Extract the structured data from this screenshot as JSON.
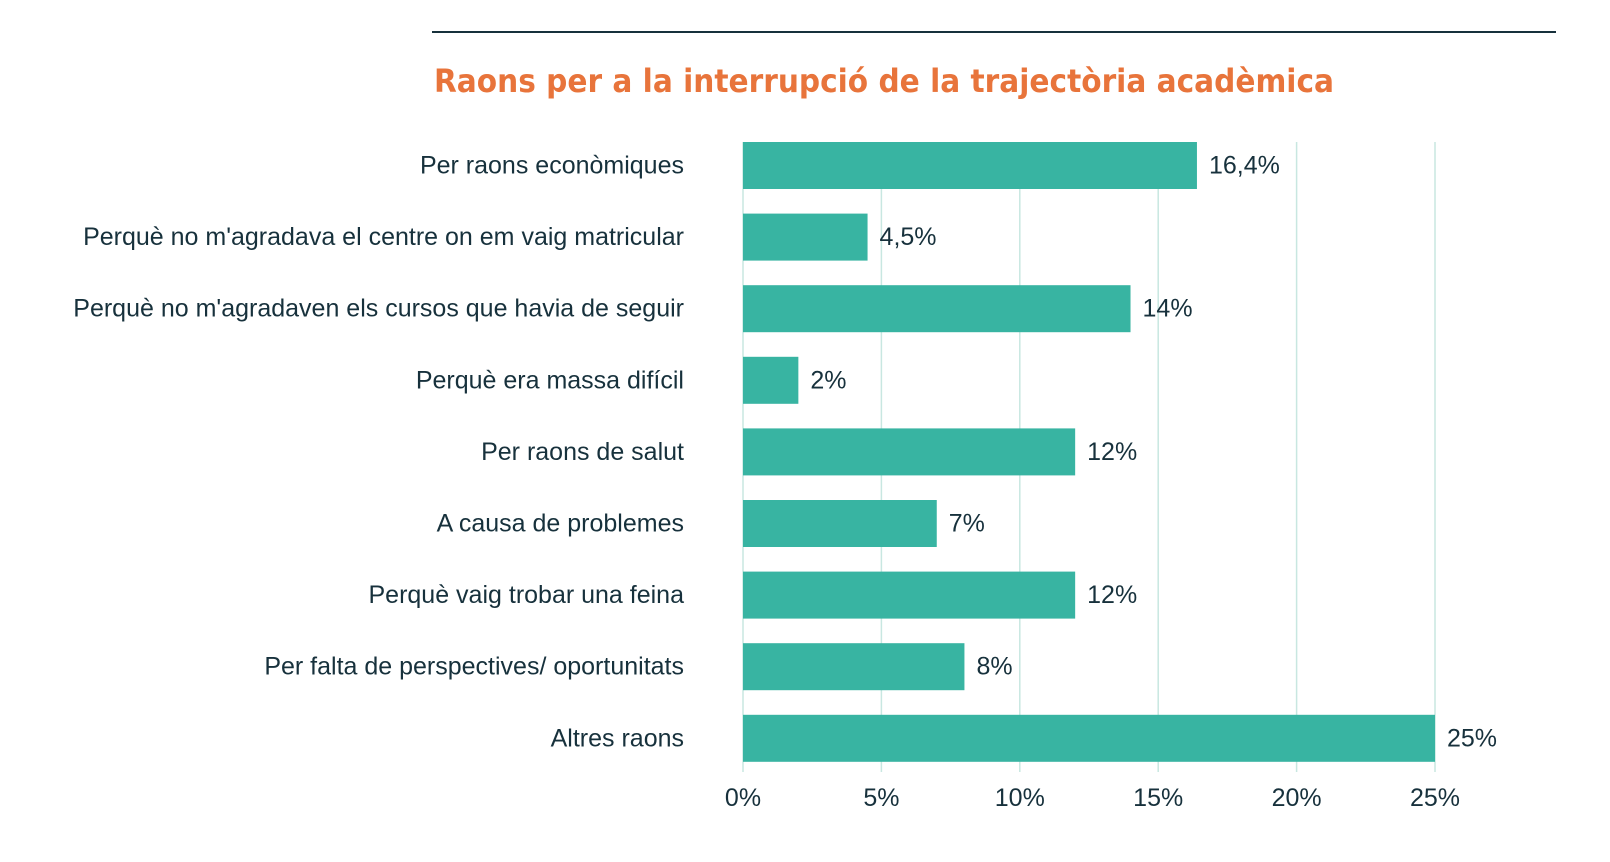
{
  "chart_data": {
    "type": "bar",
    "orientation": "horizontal",
    "title": "Raons per a la interrupció de la trajectòria acadèmica",
    "categories": [
      "Per raons econòmiques",
      "Perquè no m'agradava el centre on em vaig matricular",
      "Perquè no m'agradaven els cursos que havia de seguir",
      "Perquè era massa difícil",
      "Per raons de salut",
      "A causa de problemes",
      "Perquè vaig trobar una feina",
      "Per falta de perspectives/ oportunitats",
      "Altres raons"
    ],
    "values": [
      16.4,
      4.5,
      14,
      2,
      12,
      7,
      12,
      8,
      25
    ],
    "value_labels": [
      "16,4%",
      "4,5%",
      "14%",
      "2%",
      "12%",
      "7%",
      "12%",
      "8%",
      "25%"
    ],
    "xlim": [
      0,
      25
    ],
    "xticks": [
      0,
      5,
      10,
      15,
      20,
      25
    ],
    "xtick_labels": [
      "0%",
      "5%",
      "10%",
      "15%",
      "20%",
      "25%"
    ],
    "xlabel": "",
    "ylabel": "",
    "grid": "vertical",
    "legend": "none",
    "colors": {
      "bar": "#38b4a2",
      "title": "#e8743b",
      "text": "#17313c",
      "grid": "#c8e7e1",
      "rule": "#17313c"
    }
  }
}
